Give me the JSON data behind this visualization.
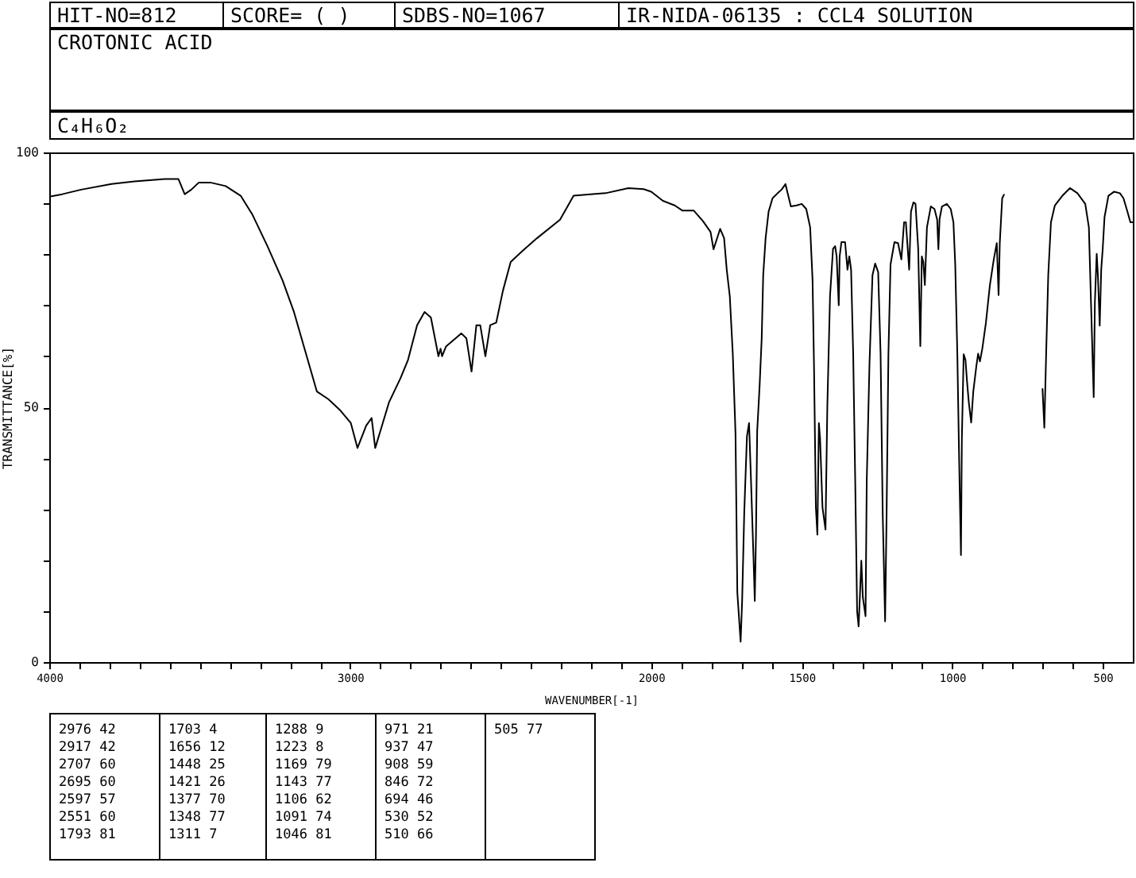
{
  "chart_data": {
    "type": "line",
    "title": "CROTONIC ACID",
    "subtitle": "C₄H₆O₂",
    "xlabel": "WAVENUMBER[-1]",
    "ylabel": "TRANSMITTANCE[%]",
    "annotations": [
      "HIT-NO=812",
      "SCORE= ( )",
      "SDBS-NO=1067",
      "IR-NIDA-06135 : CCL4 SOLUTION",
      "2976 42",
      "2917 42",
      "2707 60",
      "2695 60",
      "2597 57",
      "2551 60",
      "1793 81",
      "1703 4",
      "1656 12",
      "1448 25",
      "1421 26",
      "1377 70",
      "1348 77",
      "1311 7",
      "1288 9",
      "1223 8",
      "1169 79",
      "1143 77",
      "1106 62",
      "1091 74",
      "1046 81",
      "971 21",
      "937 47",
      "908 59",
      "846 72",
      "694 46",
      "530 52",
      "510 66",
      "505 77"
    ],
    "x": [
      4000,
      3957,
      3894,
      3793,
      3717,
      3616,
      3571,
      3550,
      3528,
      3503,
      3465,
      3414,
      3364,
      3326,
      3275,
      3225,
      3187,
      3149,
      3111,
      3073,
      3035,
      2998,
      2976,
      2947,
      2929,
      2917,
      2897,
      2871,
      2833,
      2808,
      2778,
      2753,
      2732,
      2707,
      2700,
      2695,
      2682,
      2631,
      2614,
      2597,
      2581,
      2568,
      2551,
      2535,
      2515,
      2493,
      2467,
      2429,
      2379,
      2303,
      2258,
      2202,
      2152,
      2076,
      2025,
      2000,
      1961,
      1922,
      1897,
      1859,
      1828,
      1803,
      1793,
      1771,
      1758,
      1749,
      1739,
      1729,
      1720,
      1714,
      1703,
      1698,
      1691,
      1682,
      1675,
      1669,
      1660,
      1656,
      1652,
      1648,
      1640,
      1633,
      1628,
      1620,
      1610,
      1597,
      1580,
      1567,
      1554,
      1548,
      1536,
      1517,
      1500,
      1485,
      1472,
      1464,
      1459,
      1453,
      1448,
      1443,
      1439,
      1431,
      1421,
      1415,
      1406,
      1396,
      1389,
      1384,
      1377,
      1374,
      1368,
      1356,
      1348,
      1342,
      1336,
      1329,
      1322,
      1316,
      1311,
      1306,
      1302,
      1297,
      1288,
      1284,
      1275,
      1265,
      1256,
      1246,
      1238,
      1231,
      1223,
      1218,
      1212,
      1205,
      1192,
      1180,
      1169,
      1160,
      1154,
      1143,
      1137,
      1129,
      1122,
      1113,
      1106,
      1101,
      1096,
      1091,
      1084,
      1071,
      1059,
      1050,
      1046,
      1042,
      1034,
      1018,
      1005,
      996,
      990,
      983,
      977,
      971,
      968,
      962,
      956,
      951,
      945,
      937,
      930,
      920,
      914,
      908,
      900,
      888,
      875,
      862,
      852,
      846,
      842,
      834,
      828,
      760,
      700,
      694,
      688,
      681,
      672,
      659,
      634,
      609,
      584,
      558,
      546,
      539,
      530,
      526,
      520,
      516,
      510,
      505,
      500,
      494,
      481,
      462,
      443,
      431,
      418,
      408,
      400
    ],
    "series": [
      {
        "color": "#000000",
        "values": [
          91.3,
          91.8,
          92.7,
          93.8,
          94.3,
          94.8,
          94.8,
          91.8,
          92.7,
          94.1,
          94.1,
          93.4,
          91.5,
          87.9,
          81.6,
          74.9,
          68.7,
          60.9,
          53.1,
          51.6,
          49.5,
          46.9,
          42,
          46.4,
          47.9,
          42,
          45.9,
          51.0,
          55.7,
          59.3,
          66.1,
          68.7,
          67.6,
          60,
          61.5,
          60,
          61.9,
          64.5,
          63.5,
          57,
          66.1,
          66.1,
          60,
          66.1,
          66.6,
          72.8,
          78.5,
          80.6,
          83.2,
          86.8,
          91.5,
          91.8,
          92.0,
          93.0,
          92.8,
          92.3,
          90.5,
          89.6,
          88.6,
          88.6,
          86.5,
          84.4,
          81,
          85.0,
          83.2,
          76.9,
          71.8,
          60.4,
          44.8,
          13.7,
          4,
          12,
          29.3,
          44.3,
          46.9,
          36.5,
          20,
          12,
          25,
          45.3,
          54.1,
          63.5,
          75.9,
          83.2,
          88.4,
          91.0,
          92.0,
          92.7,
          93.8,
          92.3,
          89.4,
          89.6,
          89.9,
          88.9,
          85.3,
          74.9,
          57.3,
          30.3,
          25,
          46.9,
          43.8,
          30.3,
          26,
          50.0,
          71.8,
          81.1,
          81.6,
          79.6,
          70,
          79.6,
          82.4,
          82.4,
          77,
          79.6,
          77.0,
          60.4,
          34.4,
          10,
          7,
          14,
          19.9,
          12.7,
          9,
          35.5,
          58.3,
          75.9,
          78.2,
          76.5,
          60.4,
          29.3,
          8,
          29.3,
          60.4,
          78.0,
          82.4,
          82.2,
          79,
          86.3,
          86.3,
          77,
          88.4,
          90.2,
          89.9,
          81.1,
          62,
          79.6,
          78.5,
          74,
          85.3,
          89.4,
          88.9,
          86.8,
          81,
          87,
          89.4,
          89.9,
          88.9,
          86.3,
          78.0,
          60.4,
          39.6,
          21,
          43.8,
          60.4,
          59.3,
          55.2,
          51.0,
          47,
          53.1,
          58,
          60.5,
          59,
          61.5,
          66.6,
          73.9,
          79.0,
          82.2,
          72,
          82.2,
          91.0,
          91.7,
          null,
          53.6,
          46,
          60.4,
          75.9,
          86.3,
          89.6,
          91.5,
          93.0,
          92.0,
          89.9,
          85.3,
          70.7,
          52,
          70.7,
          80.1,
          75.9,
          66,
          77,
          81.1,
          87.3,
          91.5,
          92.3,
          92.0,
          91.0,
          88.4,
          86.3,
          86.3
        ]
      }
    ],
    "xlim": [
      4000,
      400
    ],
    "xticks": [
      4000,
      {
        "value": 3900,
        "label": null
      },
      {
        "value": 3800,
        "label": null
      },
      {
        "value": 3700,
        "label": null
      },
      {
        "value": 3600,
        "label": null
      },
      {
        "value": 3500,
        "label": null
      },
      {
        "value": 3400,
        "label": null
      },
      {
        "value": 3300,
        "label": null
      },
      {
        "value": 3200,
        "label": null
      },
      {
        "value": 3100,
        "label": null
      },
      3000,
      {
        "value": 2900,
        "label": null
      },
      {
        "value": 2800,
        "label": null
      },
      {
        "value": 2700,
        "label": null
      },
      {
        "value": 2600,
        "label": null
      },
      {
        "value": 2500,
        "label": null
      },
      {
        "value": 2400,
        "label": null
      },
      {
        "value": 2300,
        "label": null
      },
      {
        "value": 2200,
        "label": null
      },
      {
        "value": 2100,
        "label": null
      },
      2000,
      {
        "value": 1900,
        "label": null
      },
      {
        "value": 1800,
        "label": null
      },
      {
        "value": 1700,
        "label": null
      },
      {
        "value": 1600,
        "label": null
      },
      1500,
      {
        "value": 1400,
        "label": null
      },
      {
        "value": 1300,
        "label": null
      },
      {
        "value": 1200,
        "label": null
      },
      {
        "value": 1100,
        "label": null
      },
      1000,
      {
        "value": 900,
        "label": null
      },
      {
        "value": 800,
        "label": null
      },
      {
        "value": 700,
        "label": null
      },
      {
        "value": 600,
        "label": null
      },
      500
    ],
    "ylim": [
      0,
      100
    ],
    "yticks": [
      0,
      {
        "value": 10,
        "label": null
      },
      {
        "value": 20,
        "label": null
      },
      {
        "value": 30,
        "label": null
      },
      {
        "value": 40,
        "label": null
      },
      50,
      {
        "value": 60,
        "label": null
      },
      {
        "value": 70,
        "label": null
      },
      {
        "value": 80,
        "label": null
      },
      {
        "value": 90,
        "label": null
      },
      100
    ]
  }
}
